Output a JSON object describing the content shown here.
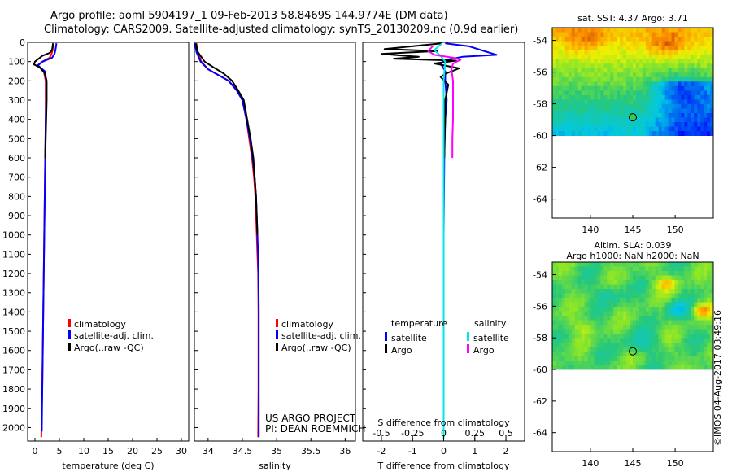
{
  "header": {
    "line1": "Argo profile: aoml 5904197_1 09-Feb-2013 58.8469S 144.9774E (DM data)",
    "line2": "Climatology: CARS2009. Satellite-adjusted climatology: synTS_20130209.nc (0.9d earlier)"
  },
  "project": {
    "line1": "US ARGO PROJECT",
    "line2": "PI: DEAN ROEMMICH"
  },
  "credit": "©IMOS 04-Aug-2017 03:49:16",
  "colors": {
    "climatology": "#ff0000",
    "satellite": "#0000ff",
    "argo": "#000000",
    "sat_salinity": "#00e5e5",
    "argo_salinity": "#ff00ff"
  },
  "chart_data": [
    {
      "type": "line",
      "id": "temperature",
      "xlabel": "temperature (deg C)",
      "ylabel": "",
      "xlim": [
        -1.5,
        31.5
      ],
      "ylim": [
        2070,
        -10
      ],
      "xticks": [
        "0",
        "5",
        "10",
        "15",
        "20",
        "25",
        "30"
      ],
      "xtick_values": [
        0,
        5,
        10,
        15,
        20,
        25,
        30
      ],
      "yticks": [
        "0",
        "100",
        "200",
        "300",
        "400",
        "500",
        "600",
        "700",
        "800",
        "900",
        "1000",
        "1100",
        "1200",
        "1300",
        "1400",
        "1500",
        "1600",
        "1700",
        "1800",
        "1900",
        "2000"
      ],
      "ytick_values": [
        0,
        100,
        200,
        300,
        400,
        500,
        600,
        700,
        800,
        900,
        1000,
        1100,
        1200,
        1300,
        1400,
        1500,
        1600,
        1700,
        1800,
        1900,
        2000
      ],
      "legend": [
        "climatology",
        "satellite-adj. clim.",
        "Argo(..raw -QC)"
      ],
      "series": [
        {
          "name": "climatology",
          "color": "#ff0000",
          "width": 2,
          "points": [
            [
              3.8,
              5
            ],
            [
              3.6,
              40
            ],
            [
              3.4,
              60
            ],
            [
              3.0,
              80
            ],
            [
              1.5,
              100
            ],
            [
              0.5,
              120
            ],
            [
              1.8,
              150
            ],
            [
              2.2,
              200
            ],
            [
              2.2,
              300
            ],
            [
              2.2,
              400
            ],
            [
              2.1,
              600
            ],
            [
              2.0,
              800
            ],
            [
              1.9,
              1000
            ],
            [
              1.8,
              1200
            ],
            [
              1.7,
              1400
            ],
            [
              1.6,
              1600
            ],
            [
              1.5,
              1800
            ],
            [
              1.4,
              1900
            ],
            [
              1.3,
              2050
            ]
          ]
        },
        {
          "name": "satellite-adj. clim.",
          "color": "#0000ff",
          "width": 2,
          "points": [
            [
              4.4,
              5
            ],
            [
              4.2,
              40
            ],
            [
              4.0,
              60
            ],
            [
              3.5,
              80
            ],
            [
              1.6,
              100
            ],
            [
              0.6,
              120
            ],
            [
              2.0,
              150
            ],
            [
              2.3,
              200
            ],
            [
              2.3,
              300
            ],
            [
              2.2,
              400
            ],
            [
              2.1,
              600
            ],
            [
              2.0,
              800
            ],
            [
              1.9,
              1000
            ],
            [
              1.8,
              1200
            ],
            [
              1.7,
              1400
            ],
            [
              1.6,
              1600
            ],
            [
              1.5,
              1800
            ],
            [
              1.45,
              1900
            ],
            [
              1.4,
              2020
            ]
          ]
        },
        {
          "name": "Argo(..raw -QC)",
          "color": "#000000",
          "width": 2,
          "points": [
            [
              3.7,
              5
            ],
            [
              3.5,
              40
            ],
            [
              3.0,
              55
            ],
            [
              1.5,
              70
            ],
            [
              0.0,
              100
            ],
            [
              -0.2,
              115
            ],
            [
              1.0,
              130
            ],
            [
              2.0,
              160
            ],
            [
              2.4,
              200
            ],
            [
              2.4,
              300
            ],
            [
              2.3,
              400
            ],
            [
              2.2,
              500
            ],
            [
              2.1,
              600
            ]
          ]
        }
      ]
    },
    {
      "type": "line",
      "id": "salinity",
      "xlabel": "salinity",
      "ylabel": "",
      "xlim": [
        33.8,
        36.15
      ],
      "ylim": [
        2070,
        -10
      ],
      "xticks": [
        "34",
        "34.5",
        "35",
        "35.5",
        "36"
      ],
      "xtick_values": [
        34,
        34.5,
        35,
        35.5,
        36
      ],
      "legend": [
        "climatology",
        "satellite-adj. clim.",
        "Argo(..raw -QC)"
      ],
      "series": [
        {
          "name": "climatology",
          "color": "#ff0000",
          "width": 2,
          "points": [
            [
              33.83,
              5
            ],
            [
              33.85,
              50
            ],
            [
              33.9,
              100
            ],
            [
              34.0,
              140
            ],
            [
              34.15,
              170
            ],
            [
              34.3,
              200
            ],
            [
              34.42,
              250
            ],
            [
              34.5,
              300
            ],
            [
              34.56,
              400
            ],
            [
              34.6,
              500
            ],
            [
              34.64,
              600
            ],
            [
              34.67,
              700
            ],
            [
              34.69,
              800
            ],
            [
              34.7,
              900
            ],
            [
              34.71,
              1000
            ],
            [
              34.72,
              1100
            ],
            [
              34.73,
              1200
            ],
            [
              34.735,
              1400
            ],
            [
              34.735,
              1600
            ],
            [
              34.735,
              1800
            ],
            [
              34.73,
              2050
            ]
          ]
        },
        {
          "name": "satellite-adj. clim.",
          "color": "#0000ff",
          "width": 2,
          "points": [
            [
              33.81,
              5
            ],
            [
              33.83,
              50
            ],
            [
              33.89,
              100
            ],
            [
              34.0,
              140
            ],
            [
              34.15,
              170
            ],
            [
              34.3,
              200
            ],
            [
              34.42,
              250
            ],
            [
              34.5,
              300
            ],
            [
              34.56,
              400
            ],
            [
              34.61,
              500
            ],
            [
              34.65,
              600
            ],
            [
              34.68,
              700
            ],
            [
              34.7,
              800
            ],
            [
              34.71,
              900
            ],
            [
              34.72,
              1000
            ],
            [
              34.73,
              1100
            ],
            [
              34.735,
              1200
            ],
            [
              34.74,
              1400
            ],
            [
              34.74,
              1600
            ],
            [
              34.74,
              1800
            ],
            [
              34.74,
              2050
            ]
          ]
        },
        {
          "name": "Argo(..raw -QC)",
          "color": "#000000",
          "width": 2,
          "points": [
            [
              33.82,
              5
            ],
            [
              33.85,
              50
            ],
            [
              33.95,
              100
            ],
            [
              34.08,
              130
            ],
            [
              34.22,
              160
            ],
            [
              34.35,
              200
            ],
            [
              34.44,
              250
            ],
            [
              34.52,
              300
            ],
            [
              34.57,
              400
            ],
            [
              34.62,
              500
            ],
            [
              34.66,
              600
            ],
            [
              34.68,
              700
            ],
            [
              34.7,
              800
            ],
            [
              34.71,
              900
            ],
            [
              34.72,
              1000
            ]
          ]
        }
      ]
    },
    {
      "type": "line",
      "id": "difference",
      "xlabel": "T difference from climatology",
      "xlabel2": "S difference from climatology",
      "xlim": [
        -2.6,
        2.6
      ],
      "ylim": [
        2070,
        -10
      ],
      "xticks": [
        "-2",
        "-1",
        "0",
        "1",
        "2"
      ],
      "xtick_values": [
        -2,
        -1,
        0,
        1,
        2
      ],
      "sticks": [
        "-0.5",
        "-0.25",
        "0",
        "0.25",
        "0.5"
      ],
      "stick_values": [
        -0.5,
        -0.25,
        0,
        0.25,
        0.5
      ],
      "legend_headers": [
        "temperature",
        "salinity"
      ],
      "legend": [
        "satellite",
        "Argo",
        "satellite",
        "Argo"
      ],
      "series": [
        {
          "name": "satellite",
          "color": "#0000ff",
          "width": 2,
          "points": [
            [
              0.05,
              5
            ],
            [
              0.8,
              20
            ],
            [
              1.2,
              40
            ],
            [
              1.7,
              65
            ],
            [
              0.6,
              75
            ],
            [
              0.1,
              90
            ],
            [
              -0.1,
              110
            ],
            [
              0.05,
              150
            ],
            [
              0.05,
              200
            ],
            [
              0.1,
              300
            ],
            [
              0.05,
              400
            ],
            [
              0.02,
              600
            ],
            [
              0.01,
              800
            ],
            [
              0.0,
              1000
            ],
            [
              0.0,
              1400
            ],
            [
              0.0,
              1800
            ],
            [
              0.0,
              1900
            ]
          ]
        },
        {
          "name": "Argo",
          "color": "#000000",
          "width": 2,
          "points": [
            [
              -0.05,
              5
            ],
            [
              -0.7,
              15
            ],
            [
              -1.9,
              35
            ],
            [
              -0.2,
              45
            ],
            [
              -2.0,
              60
            ],
            [
              -0.8,
              75
            ],
            [
              -1.6,
              85
            ],
            [
              0.4,
              95
            ],
            [
              -0.3,
              110
            ],
            [
              0.5,
              135
            ],
            [
              0.1,
              160
            ],
            [
              -0.1,
              180
            ],
            [
              0.15,
              220
            ],
            [
              0.05,
              300
            ],
            [
              0.05,
              400
            ],
            [
              0.03,
              500
            ],
            [
              0.02,
              600
            ]
          ]
        },
        {
          "name": "satellite",
          "color": "#00e5e5",
          "width": 2,
          "points": [
            [
              -0.05,
              5
            ],
            [
              -0.3,
              40
            ],
            [
              -0.1,
              70
            ],
            [
              0.05,
              100
            ],
            [
              0.0,
              200
            ],
            [
              0.0,
              400
            ],
            [
              0.0,
              800
            ],
            [
              0.0,
              1200
            ],
            [
              0.0,
              1600
            ],
            [
              0.0,
              2000
            ],
            [
              0.0,
              2060
            ]
          ]
        },
        {
          "name": "Argo",
          "color": "#ff00ff",
          "width": 2,
          "points": [
            [
              -0.35,
              20
            ],
            [
              -0.5,
              45
            ],
            [
              -0.3,
              65
            ],
            [
              0.3,
              80
            ],
            [
              0.55,
              90
            ],
            [
              0.3,
              110
            ],
            [
              0.25,
              140
            ],
            [
              0.3,
              200
            ],
            [
              0.3,
              300
            ],
            [
              0.3,
              400
            ],
            [
              0.28,
              500
            ],
            [
              0.28,
              600
            ]
          ]
        }
      ]
    },
    {
      "type": "heatmap",
      "id": "sst-map",
      "title": "sat. SST: 4.37 Argo: 3.71",
      "xticks": [
        "140",
        "145",
        "150"
      ],
      "xtick_values": [
        140,
        145,
        150
      ],
      "yticks": [
        "-54",
        "-56",
        "-58",
        "-60",
        "-62",
        "-64"
      ],
      "ytick_values": [
        -54,
        -56,
        -58,
        -60,
        -62,
        -64
      ],
      "xlim": [
        135.5,
        154.5
      ],
      "ylim": [
        -65.2,
        -53.2
      ],
      "data_extent_lat": [
        -60,
        -53.2
      ],
      "marker": [
        145,
        -58.85
      ],
      "field": "sst"
    },
    {
      "type": "heatmap",
      "id": "sla-map",
      "title": "Altim. SLA: 0.039",
      "title2": "Argo h1000: NaN h2000: NaN",
      "xticks": [
        "140",
        "145",
        "150"
      ],
      "xtick_values": [
        140,
        145,
        150
      ],
      "yticks": [
        "-54",
        "-56",
        "-58",
        "-60",
        "-62",
        "-64"
      ],
      "ytick_values": [
        -54,
        -56,
        -58,
        -60,
        -62,
        -64
      ],
      "xlim": [
        135.5,
        154.5
      ],
      "ylim": [
        -65.2,
        -53.2
      ],
      "data_extent_lat": [
        -60,
        -53.2
      ],
      "marker": [
        145,
        -58.85
      ],
      "field": "sla"
    }
  ]
}
